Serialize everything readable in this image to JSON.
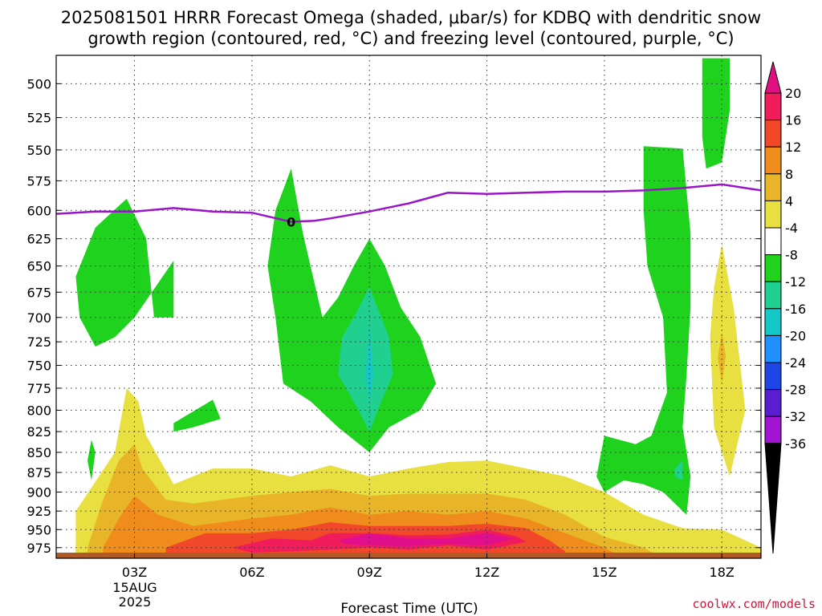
{
  "chart_data": {
    "type": "contour",
    "title_line1": "2025081501 HRRR Forecast Omega (shaded, μbar/s) for KDBQ with dendritic snow",
    "title_line2": "growth region (contoured, red, °C) and freezing level (contoured, purple, °C)",
    "xlabel": "Forecast Time (UTC)",
    "date_label": [
      "15AUG",
      "2025"
    ],
    "credit": "coolwx.com/models",
    "x_ticks": [
      {
        "hour": 3,
        "label": "03Z"
      },
      {
        "hour": 6,
        "label": "06Z"
      },
      {
        "hour": 9,
        "label": "09Z"
      },
      {
        "hour": 12,
        "label": "12Z"
      },
      {
        "hour": 15,
        "label": "15Z"
      },
      {
        "hour": 18,
        "label": "18Z"
      }
    ],
    "x_range_hours": [
      1,
      19
    ],
    "y_ticks": [
      500,
      525,
      550,
      575,
      600,
      625,
      650,
      675,
      700,
      725,
      750,
      775,
      800,
      825,
      850,
      875,
      900,
      925,
      950,
      975
    ],
    "y_range_hPa": [
      480,
      990
    ],
    "y_scale": "log-pressure",
    "grid": true,
    "colorbar": {
      "labels": [
        20,
        16,
        12,
        8,
        4,
        -4,
        -8,
        -12,
        -16,
        -20,
        -24,
        -28,
        -32,
        -36
      ],
      "colors": [
        "#f01c5c",
        "#f04828",
        "#f08c1c",
        "#e8b428",
        "#e8e040",
        "#ffffff",
        "#1ed21e",
        "#20d090",
        "#14c8c8",
        "#1e90ff",
        "#1e46e6",
        "#5a1ed2",
        "#a014d2",
        "#a8a8a8"
      ],
      "top_arrow_color": "#e01080",
      "bottom_arrow_color": "#000000"
    },
    "freezing_level": {
      "label": "0",
      "color": "#9a14c8",
      "points": [
        [
          1,
          603
        ],
        [
          2,
          601
        ],
        [
          3,
          601
        ],
        [
          4,
          598
        ],
        [
          5,
          601
        ],
        [
          6,
          602
        ],
        [
          7,
          610
        ],
        [
          7.6,
          609
        ],
        [
          8,
          607
        ],
        [
          9,
          601
        ],
        [
          10,
          594
        ],
        [
          11,
          585
        ],
        [
          12,
          586
        ],
        [
          13,
          585
        ],
        [
          14,
          584
        ],
        [
          15,
          584
        ],
        [
          16,
          583
        ],
        [
          17,
          581
        ],
        [
          18,
          578
        ],
        [
          19,
          583
        ]
      ]
    },
    "omega_regions": [
      {
        "level": 4,
        "color": "#e8e040",
        "points": [
          [
            1.5,
            975
          ],
          [
            1.5,
            925
          ],
          [
            2.5,
            850
          ],
          [
            2.8,
            775
          ],
          [
            3.1,
            790
          ],
          [
            3.3,
            830
          ],
          [
            4,
            890
          ],
          [
            5,
            870
          ],
          [
            6,
            870
          ],
          [
            7,
            880
          ],
          [
            8,
            866
          ],
          [
            9,
            880
          ],
          [
            10,
            870
          ],
          [
            11,
            862
          ],
          [
            12,
            860
          ],
          [
            13,
            870
          ],
          [
            14,
            880
          ],
          [
            15,
            900
          ],
          [
            16,
            930
          ],
          [
            17,
            948
          ],
          [
            18,
            950
          ],
          [
            19,
            975
          ],
          [
            19,
            990
          ],
          [
            1.5,
            990
          ]
        ]
      },
      {
        "level": 8,
        "color": "#e8b428",
        "points": [
          [
            1.8,
            975
          ],
          [
            2.2,
            910
          ],
          [
            2.6,
            860
          ],
          [
            3,
            840
          ],
          [
            3.2,
            870
          ],
          [
            3.8,
            910
          ],
          [
            4.5,
            915
          ],
          [
            6,
            905
          ],
          [
            7,
            900
          ],
          [
            8,
            896
          ],
          [
            9,
            905
          ],
          [
            10,
            902
          ],
          [
            11,
            902
          ],
          [
            12,
            902
          ],
          [
            13,
            910
          ],
          [
            14,
            930
          ],
          [
            15,
            960
          ],
          [
            16,
            975
          ],
          [
            16.5,
            990
          ],
          [
            1.8,
            990
          ]
        ]
      },
      {
        "level": 12,
        "color": "#f08c1c",
        "points": [
          [
            2.2,
            975
          ],
          [
            2.6,
            935
          ],
          [
            3,
            905
          ],
          [
            3.6,
            930
          ],
          [
            4.5,
            945
          ],
          [
            6,
            935
          ],
          [
            7,
            930
          ],
          [
            8,
            920
          ],
          [
            9,
            930
          ],
          [
            10,
            925
          ],
          [
            11,
            930
          ],
          [
            12,
            925
          ],
          [
            13,
            935
          ],
          [
            14,
            955
          ],
          [
            15,
            975
          ],
          [
            15.5,
            990
          ],
          [
            2.2,
            990
          ]
        ]
      },
      {
        "level": 16,
        "color": "#f04828",
        "points": [
          [
            3.8,
            975
          ],
          [
            4.8,
            955
          ],
          [
            6,
            955
          ],
          [
            7,
            950
          ],
          [
            8,
            940
          ],
          [
            9,
            945
          ],
          [
            10,
            945
          ],
          [
            11,
            945
          ],
          [
            12,
            942
          ],
          [
            13,
            948
          ],
          [
            13.6,
            965
          ],
          [
            14,
            980
          ],
          [
            14,
            990
          ],
          [
            3.8,
            990
          ]
        ]
      },
      {
        "level": 20,
        "color": "#f01c5c",
        "points": [
          [
            5.5,
            975
          ],
          [
            6.5,
            962
          ],
          [
            7.5,
            965
          ],
          [
            8,
            955
          ],
          [
            9,
            955
          ],
          [
            10,
            958
          ],
          [
            11,
            957
          ],
          [
            12,
            950
          ],
          [
            12.8,
            960
          ],
          [
            13,
            967
          ],
          [
            12,
            978
          ],
          [
            11,
            972
          ],
          [
            10,
            978
          ],
          [
            9,
            975
          ],
          [
            8,
            978
          ],
          [
            7,
            980
          ],
          [
            6,
            982
          ]
        ]
      },
      {
        "level": 20,
        "color": "#e0108c",
        "points": [
          [
            8.2,
            965
          ],
          [
            9,
            955
          ],
          [
            10,
            962
          ],
          [
            11,
            962
          ],
          [
            12,
            955
          ],
          [
            12.7,
            962
          ],
          [
            12,
            972
          ],
          [
            11,
            970
          ],
          [
            10,
            973
          ],
          [
            9,
            972
          ],
          [
            8.4,
            970
          ]
        ]
      },
      {
        "level": 4,
        "color": "#e8e040",
        "points": [
          [
            18,
            630
          ],
          [
            18.3,
            690
          ],
          [
            18.6,
            800
          ],
          [
            18.2,
            880
          ],
          [
            17.8,
            820
          ],
          [
            17.7,
            720
          ],
          [
            17.8,
            670
          ]
        ]
      },
      {
        "level": 8,
        "color": "#e8b428",
        "points": [
          [
            18,
            715
          ],
          [
            18.1,
            740
          ],
          [
            18,
            770
          ],
          [
            17.9,
            742
          ]
        ]
      },
      {
        "level": -4,
        "color": "#1ed21e",
        "points": [
          [
            1.5,
            660
          ],
          [
            2,
            615
          ],
          [
            2.8,
            590
          ],
          [
            3.3,
            625
          ],
          [
            3.5,
            700
          ],
          [
            4,
            700
          ],
          [
            4,
            645
          ],
          [
            3,
            700
          ],
          [
            2.5,
            720
          ],
          [
            2,
            730
          ],
          [
            1.6,
            700
          ]
        ]
      },
      {
        "level": -4,
        "color": "#1ed21e",
        "points": [
          [
            6.4,
            650
          ],
          [
            6.6,
            600
          ],
          [
            7,
            565
          ],
          [
            7.3,
            620
          ],
          [
            7.8,
            700
          ],
          [
            8.2,
            680
          ],
          [
            8.6,
            650
          ],
          [
            9,
            625
          ],
          [
            9.4,
            650
          ],
          [
            9.8,
            690
          ],
          [
            10.3,
            720
          ],
          [
            10.7,
            770
          ],
          [
            10.3,
            800
          ],
          [
            9.5,
            820
          ],
          [
            9,
            850
          ],
          [
            8.2,
            820
          ],
          [
            7.5,
            790
          ],
          [
            6.8,
            770
          ],
          [
            6.6,
            700
          ]
        ]
      },
      {
        "level": -8,
        "color": "#20d090",
        "points": [
          [
            9,
            670
          ],
          [
            9.5,
            720
          ],
          [
            9.6,
            760
          ],
          [
            9.3,
            790
          ],
          [
            9,
            825
          ],
          [
            8.6,
            790
          ],
          [
            8.2,
            760
          ],
          [
            8.3,
            720
          ],
          [
            8.6,
            700
          ]
        ]
      },
      {
        "level": -12,
        "color": "#14c8c8",
        "points": [
          [
            9,
            710
          ],
          [
            9.1,
            760
          ],
          [
            9,
            790
          ],
          [
            8.9,
            760
          ]
        ]
      },
      {
        "level": -4,
        "color": "#1ed21e",
        "points": [
          [
            4,
            815
          ],
          [
            5,
            788
          ],
          [
            5.2,
            810
          ],
          [
            4.5,
            820
          ],
          [
            4,
            825
          ]
        ]
      },
      {
        "level": -4,
        "color": "#1ed21e",
        "points": [
          [
            1.9,
            835
          ],
          [
            2,
            850
          ],
          [
            1.9,
            885
          ],
          [
            1.8,
            860
          ]
        ]
      },
      {
        "level": -4,
        "color": "#1ed21e",
        "points": [
          [
            16,
            547
          ],
          [
            17,
            549
          ],
          [
            17.2,
            620
          ],
          [
            17.2,
            690
          ],
          [
            17.1,
            760
          ],
          [
            17,
            820
          ],
          [
            17.2,
            880
          ],
          [
            17.1,
            930
          ],
          [
            16.5,
            900
          ],
          [
            16,
            890
          ],
          [
            15.5,
            885
          ],
          [
            15,
            900
          ],
          [
            14.8,
            880
          ],
          [
            15,
            830
          ],
          [
            15.8,
            840
          ],
          [
            16.2,
            830
          ],
          [
            16.6,
            780
          ],
          [
            16.5,
            700
          ],
          [
            16.1,
            650
          ],
          [
            16,
            600
          ]
        ]
      },
      {
        "level": -8,
        "color": "#20d090",
        "points": [
          [
            16.8,
            870
          ],
          [
            17,
            860
          ],
          [
            17,
            885
          ],
          [
            16.8,
            880
          ]
        ]
      },
      {
        "level": -4,
        "color": "#1ed21e",
        "points": [
          [
            17.5,
            482
          ],
          [
            18.2,
            482
          ],
          [
            18.2,
            520
          ],
          [
            18,
            560
          ],
          [
            17.6,
            565
          ],
          [
            17.5,
            540
          ]
        ]
      }
    ]
  }
}
